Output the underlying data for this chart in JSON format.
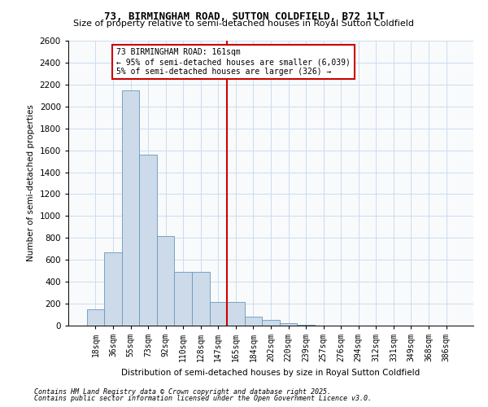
{
  "title1": "73, BIRMINGHAM ROAD, SUTTON COLDFIELD, B72 1LT",
  "title2": "Size of property relative to semi-detached houses in Royal Sutton Coldfield",
  "xlabel": "Distribution of semi-detached houses by size in Royal Sutton Coldfield",
  "ylabel": "Number of semi-detached properties",
  "footer1": "Contains HM Land Registry data © Crown copyright and database right 2025.",
  "footer2": "Contains public sector information licensed under the Open Government Licence v3.0.",
  "annotation_line1": "73 BIRMINGHAM ROAD: 161sqm",
  "annotation_line2": "← 95% of semi-detached houses are smaller (6,039)",
  "annotation_line3": "5% of semi-detached houses are larger (326) →",
  "bar_color": "#ccdaea",
  "bar_edge_color": "#6699bb",
  "vline_color": "#cc0000",
  "annotation_box_edge": "#cc0000",
  "categories": [
    "18sqm",
    "36sqm",
    "55sqm",
    "73sqm",
    "92sqm",
    "110sqm",
    "128sqm",
    "147sqm",
    "165sqm",
    "184sqm",
    "202sqm",
    "220sqm",
    "239sqm",
    "257sqm",
    "276sqm",
    "294sqm",
    "312sqm",
    "331sqm",
    "349sqm",
    "368sqm",
    "386sqm"
  ],
  "values": [
    150,
    670,
    2150,
    1560,
    820,
    490,
    490,
    215,
    215,
    85,
    50,
    20,
    5,
    3,
    2,
    1,
    0,
    0,
    1,
    0,
    0
  ],
  "ylim": [
    0,
    2600
  ],
  "yticks": [
    0,
    200,
    400,
    600,
    800,
    1000,
    1200,
    1400,
    1600,
    1800,
    2000,
    2200,
    2400,
    2600
  ],
  "vline_position": 7.5,
  "bar_width": 1.0,
  "figsize": [
    6.0,
    5.0
  ],
  "dpi": 100
}
